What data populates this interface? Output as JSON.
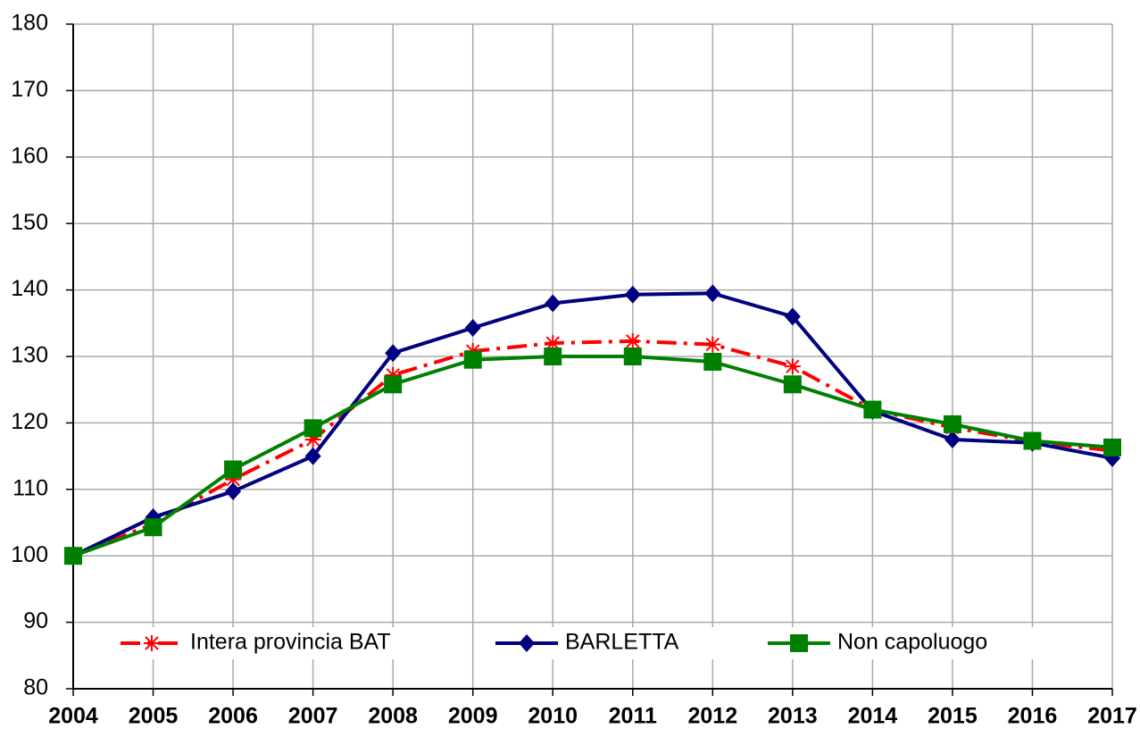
{
  "chart_data": {
    "type": "line",
    "x": [
      2004,
      2005,
      2006,
      2007,
      2008,
      2009,
      2010,
      2011,
      2012,
      2013,
      2014,
      2015,
      2016,
      2017
    ],
    "series": [
      {
        "name": "Intera provincia BAT",
        "color": "#ff0000",
        "marker": "asterisk",
        "dash": "dashdot",
        "values": [
          100,
          104.8,
          111.5,
          117.5,
          127.2,
          130.8,
          132,
          132.3,
          131.8,
          128.5,
          122,
          119.3,
          117.2,
          115.8
        ]
      },
      {
        "name": "BARLETTA",
        "color": "#000080",
        "marker": "diamond",
        "dash": "solid",
        "values": [
          100,
          105.8,
          109.7,
          115,
          130.5,
          134.3,
          138,
          139.3,
          139.5,
          136,
          121.8,
          117.5,
          117,
          114.7
        ]
      },
      {
        "name": "Non capoluogo",
        "color": "#008000",
        "marker": "square",
        "dash": "solid",
        "values": [
          100,
          104.3,
          113,
          119.2,
          125.8,
          129.5,
          130,
          130,
          129.2,
          125.8,
          122,
          119.8,
          117.3,
          116.3
        ]
      }
    ],
    "xlim": [
      2004,
      2017
    ],
    "xticks": [
      2004,
      2005,
      2006,
      2007,
      2008,
      2009,
      2010,
      2011,
      2012,
      2013,
      2014,
      2015,
      2016,
      2017
    ],
    "ylim": [
      80,
      180
    ],
    "yticks": [
      80,
      90,
      100,
      110,
      120,
      130,
      140,
      150,
      160,
      170,
      180
    ],
    "grid": true,
    "legend": "bottom"
  }
}
